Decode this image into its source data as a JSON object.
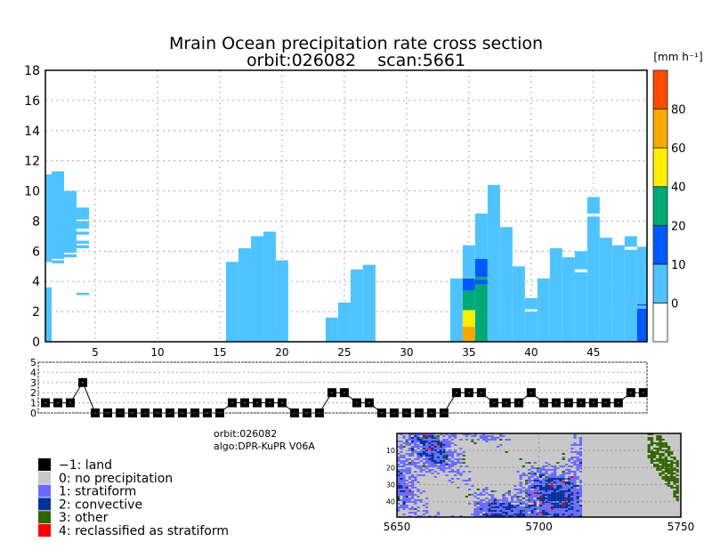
{
  "title": "Mrain Ocean precipitation rate cross section",
  "subtitle": "orbit:026082    scan:5661",
  "colorbar": {
    "unit_label": "[mm h⁻¹]",
    "bins": [
      {
        "label": "",
        "color": "#ffffff"
      },
      {
        "label": "0",
        "color": "#4fc3ff"
      },
      {
        "label": "10",
        "color": "#0058ff"
      },
      {
        "label": "20",
        "color": "#00aa77"
      },
      {
        "label": "40",
        "color": "#ffee00"
      },
      {
        "label": "60",
        "color": "#f5a800"
      },
      {
        "label": "80",
        "color": "#ff4a00"
      }
    ]
  },
  "chart_data": [
    {
      "type": "heatmap",
      "title": "Mrain Ocean precipitation rate cross section",
      "xlim": [
        1,
        49.3
      ],
      "ylim": [
        0,
        18
      ],
      "xticks": [
        5,
        10,
        15,
        20,
        25,
        30,
        35,
        40,
        45
      ],
      "yticks": [
        0,
        2,
        4,
        6,
        8,
        10,
        12,
        14,
        16,
        18
      ],
      "grid": true,
      "note_bins": "segment bin index refers to colorbar.bins",
      "columns": [
        {
          "x": 1,
          "segments": [
            [
              0,
              3.6,
              1
            ],
            [
              5.3,
              11.1,
              1
            ]
          ]
        },
        {
          "x": 2,
          "segments": [
            [
              5.2,
              5.4,
              1
            ],
            [
              5.5,
              11.3,
              1
            ]
          ]
        },
        {
          "x": 3,
          "segments": [
            [
              5.6,
              5.8,
              1
            ],
            [
              5.9,
              10.0,
              1
            ]
          ]
        },
        {
          "x": 4,
          "segments": [
            [
              3.1,
              3.25,
              1
            ],
            [
              6.2,
              6.4,
              1
            ],
            [
              6.5,
              6.7,
              1
            ],
            [
              7.1,
              7.3,
              1
            ],
            [
              7.5,
              8.0,
              1
            ],
            [
              8.1,
              8.9,
              1
            ]
          ]
        },
        {
          "x": 16,
          "segments": [
            [
              0,
              5.3,
              1
            ]
          ]
        },
        {
          "x": 17,
          "segments": [
            [
              0,
              6.2,
              1
            ]
          ]
        },
        {
          "x": 18,
          "segments": [
            [
              0,
              7.0,
              1
            ]
          ]
        },
        {
          "x": 19,
          "segments": [
            [
              0,
              7.3,
              1
            ]
          ]
        },
        {
          "x": 20,
          "segments": [
            [
              0,
              5.4,
              1
            ]
          ]
        },
        {
          "x": 24,
          "segments": [
            [
              0,
              1.6,
              1
            ]
          ]
        },
        {
          "x": 25,
          "segments": [
            [
              0,
              2.6,
              1
            ]
          ]
        },
        {
          "x": 26,
          "segments": [
            [
              0,
              4.8,
              1
            ]
          ]
        },
        {
          "x": 27,
          "segments": [
            [
              0,
              5.1,
              1
            ]
          ]
        },
        {
          "x": 34,
          "segments": [
            [
              0,
              4.2,
              1
            ]
          ]
        },
        {
          "x": 35,
          "segments": [
            [
              0,
              1.0,
              5
            ],
            [
              1.0,
              2.1,
              4
            ],
            [
              2.1,
              3.4,
              3
            ],
            [
              3.4,
              4.2,
              2
            ],
            [
              4.2,
              6.4,
              1
            ]
          ]
        },
        {
          "x": 36,
          "segments": [
            [
              0,
              3.8,
              3
            ],
            [
              3.8,
              4.1,
              2
            ],
            [
              4.1,
              4.3,
              3
            ],
            [
              4.3,
              5.5,
              2
            ],
            [
              5.5,
              8.5,
              1
            ]
          ]
        },
        {
          "x": 37,
          "segments": [
            [
              0,
              10.4,
              1
            ]
          ]
        },
        {
          "x": 38,
          "segments": [
            [
              0,
              7.6,
              1
            ]
          ]
        },
        {
          "x": 39,
          "segments": [
            [
              0,
              5.0,
              1
            ]
          ]
        },
        {
          "x": 40,
          "segments": [
            [
              0,
              2.0,
              1
            ],
            [
              2.15,
              2.9,
              1
            ]
          ]
        },
        {
          "x": 41,
          "segments": [
            [
              0,
              4.2,
              1
            ]
          ]
        },
        {
          "x": 42,
          "segments": [
            [
              0,
              6.2,
              1
            ]
          ]
        },
        {
          "x": 43,
          "segments": [
            [
              0,
              5.6,
              1
            ]
          ]
        },
        {
          "x": 44,
          "segments": [
            [
              0,
              4.6,
              1
            ],
            [
              4.8,
              6.0,
              1
            ]
          ]
        },
        {
          "x": 45,
          "segments": [
            [
              0,
              8.3,
              1
            ],
            [
              8.5,
              9.6,
              1
            ]
          ]
        },
        {
          "x": 46,
          "segments": [
            [
              0,
              6.9,
              1
            ]
          ]
        },
        {
          "x": 47,
          "segments": [
            [
              0,
              6.4,
              1
            ]
          ]
        },
        {
          "x": 48,
          "segments": [
            [
              0,
              6.1,
              1
            ],
            [
              6.3,
              7.0,
              1
            ]
          ]
        },
        {
          "x": 49,
          "segments": [
            [
              0,
              2.2,
              2
            ],
            [
              2.2,
              2.4,
              1
            ],
            [
              2.4,
              2.5,
              2
            ],
            [
              2.5,
              6.3,
              1
            ]
          ]
        }
      ]
    },
    {
      "type": "line",
      "ylim": [
        0,
        5
      ],
      "yticks": [
        0,
        1,
        2,
        3,
        4,
        5
      ],
      "grid": true,
      "x": [
        1,
        2,
        3,
        4,
        5,
        6,
        7,
        8,
        9,
        10,
        11,
        12,
        13,
        14,
        15,
        16,
        17,
        18,
        19,
        20,
        21,
        22,
        23,
        24,
        25,
        26,
        27,
        28,
        29,
        30,
        31,
        32,
        33,
        34,
        35,
        36,
        37,
        38,
        39,
        40,
        41,
        42,
        43,
        44,
        45,
        46,
        47,
        48,
        49
      ],
      "values": [
        1,
        1,
        1,
        3,
        0,
        0,
        0,
        0,
        0,
        0,
        0,
        0,
        0,
        0,
        0,
        1,
        1,
        1,
        1,
        1,
        0,
        0,
        0,
        2,
        2,
        1,
        1,
        0,
        0,
        0,
        0,
        0,
        0,
        2,
        2,
        2,
        1,
        1,
        1,
        2,
        1,
        1,
        1,
        1,
        1,
        1,
        1,
        2,
        2
      ]
    }
  ],
  "info": {
    "orbit": "orbit:026082",
    "algo": "algo:DPR-KuPR V06A"
  },
  "legend": [
    {
      "label": "−1: land",
      "color": "#000000"
    },
    {
      "label": "0: no precipitation",
      "color": "#c8c8c8"
    },
    {
      "label": "1: stratiform",
      "color": "#6b6bff"
    },
    {
      "label": "2: convective",
      "color": "#003399"
    },
    {
      "label": "3: other",
      "color": "#336600"
    },
    {
      "label": "4: reclassified as stratiform",
      "color": "#ff0000"
    }
  ],
  "map": {
    "xticks": [
      "5650",
      "5700",
      "5750"
    ],
    "yticks": [
      "10",
      "20",
      "30",
      "40"
    ]
  }
}
